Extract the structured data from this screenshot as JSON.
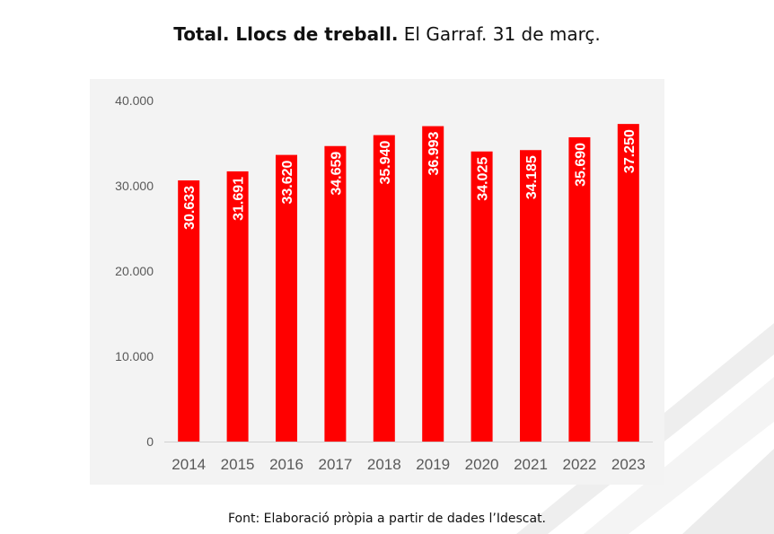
{
  "header": {
    "title_bold": "Total. Llocs de treball.",
    "title_rest": " El Garraf. 31 de març."
  },
  "footer": {
    "source": "Font: Elaboració pròpia a partir de dades l’Idescat."
  },
  "colors": {
    "bar": "#ff0000",
    "bar_label": "#ffffff",
    "axis_text": "#595959",
    "panel_bg": "#f3f3f3"
  },
  "chart_data": {
    "type": "bar",
    "title": "Total. Llocs de treball. El Garraf. 31 de març.",
    "categories": [
      "2014",
      "2015",
      "2016",
      "2017",
      "2018",
      "2019",
      "2020",
      "2021",
      "2022",
      "2023"
    ],
    "values": [
      30633,
      31691,
      33620,
      34659,
      35940,
      36993,
      34025,
      34185,
      35690,
      37250
    ],
    "value_labels": [
      "30.633",
      "31.691",
      "33.620",
      "34.659",
      "35.940",
      "36.993",
      "34.025",
      "34.185",
      "35.690",
      "37.250"
    ],
    "y_ticks": [
      0,
      10000,
      20000,
      30000,
      40000
    ],
    "y_tick_labels": [
      "0",
      "10.000",
      "20.000",
      "30.000",
      "40.000"
    ],
    "ylim": [
      0,
      40000
    ],
    "xlabel": "",
    "ylabel": "",
    "grid": false,
    "legend": "none",
    "data_labels": "inside-bar-vertical"
  }
}
